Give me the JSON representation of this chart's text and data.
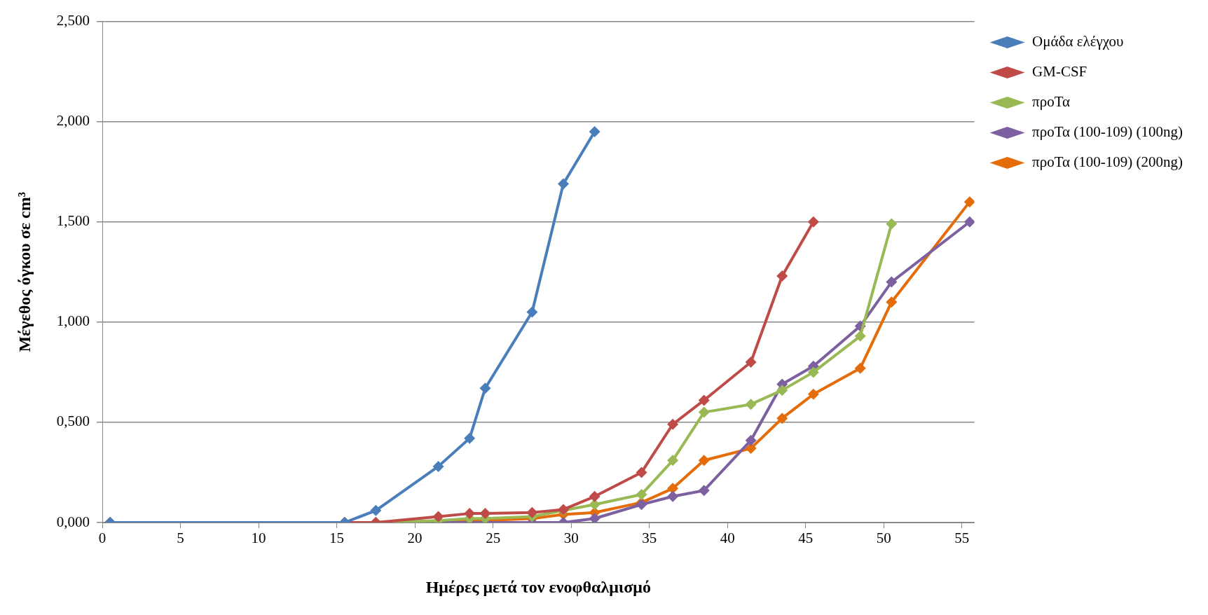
{
  "chart_data": {
    "type": "line",
    "xlabel": "Ημέρες μετά τον ενοφθαλμισμό",
    "ylabel": "Μέγεθος όγκου σε cm³",
    "xlim": [
      0,
      55.8
    ],
    "xticks": [
      0,
      5,
      10,
      15,
      20,
      25,
      30,
      35,
      40,
      45,
      50,
      55
    ],
    "ylim": [
      0,
      2.5
    ],
    "yticks": [
      {
        "value": 0,
        "label": "0,000"
      },
      {
        "value": 0.5,
        "label": "0,500"
      },
      {
        "value": 1,
        "label": "1,000"
      },
      {
        "value": 1.5,
        "label": "1,500"
      },
      {
        "value": 2,
        "label": "2,000"
      },
      {
        "value": 2.5,
        "label": "2,500"
      }
    ],
    "grid": "y",
    "legend": "right",
    "marker": "diamond",
    "line_style": "solid",
    "series": [
      {
        "name": "Ομάδα ελέγχου",
        "color": "#4a7ebb",
        "x": [
          0.5,
          15.5,
          17.5,
          21.5,
          23.5,
          24.5,
          27.5,
          29.5,
          31.5
        ],
        "values": [
          0,
          0,
          0.06,
          0.28,
          0.42,
          0.67,
          1.05,
          1.69,
          1.95
        ]
      },
      {
        "name": "GM-CSF",
        "color": "#be4b48",
        "x": [
          0.5,
          15.5,
          17.5,
          21.5,
          23.5,
          24.5,
          27.5,
          29.5,
          31.5,
          34.5,
          36.5,
          38.5,
          41.5,
          43.5,
          45.5
        ],
        "values": [
          0,
          0,
          0,
          0.03,
          0.045,
          0.045,
          0.05,
          0.065,
          0.13,
          0.25,
          0.49,
          0.61,
          0.8,
          1.23,
          1.5
        ]
      },
      {
        "name": "προΤα",
        "color": "#98b954",
        "x": [
          0.5,
          15.5,
          17.5,
          21.5,
          23.5,
          24.5,
          27.5,
          29.5,
          31.5,
          34.5,
          36.5,
          38.5,
          41.5,
          43.5,
          45.5,
          48.5,
          50.5
        ],
        "values": [
          0,
          0,
          0,
          0.01,
          0.02,
          0.02,
          0.03,
          0.06,
          0.09,
          0.14,
          0.31,
          0.55,
          0.59,
          0.66,
          0.75,
          0.93,
          1.49
        ]
      },
      {
        "name": "προΤα (100-109) (100ng)",
        "color": "#7d60a0",
        "x": [
          0.5,
          15.5,
          17.5,
          21.5,
          23.5,
          24.5,
          27.5,
          29.5,
          31.5,
          34.5,
          36.5,
          38.5,
          41.5,
          43.5,
          45.5,
          48.5,
          50.5,
          55.5
        ],
        "values": [
          0,
          0,
          0,
          0,
          0,
          0,
          0,
          0,
          0.02,
          0.09,
          0.13,
          0.16,
          0.41,
          0.69,
          0.78,
          0.98,
          1.2,
          1.5
        ]
      },
      {
        "name": "προΤα (100-109) (200ng)",
        "color": "#e46c0a",
        "x": [
          0.5,
          15.5,
          17.5,
          21.5,
          23.5,
          24.5,
          27.5,
          29.5,
          31.5,
          34.5,
          36.5,
          38.5,
          41.5,
          43.5,
          45.5,
          48.5,
          50.5,
          55.5
        ],
        "values": [
          0,
          0,
          0,
          0,
          0.01,
          0.01,
          0.02,
          0.04,
          0.05,
          0.1,
          0.17,
          0.31,
          0.37,
          0.52,
          0.64,
          0.77,
          1.1,
          1.6
        ]
      }
    ]
  }
}
